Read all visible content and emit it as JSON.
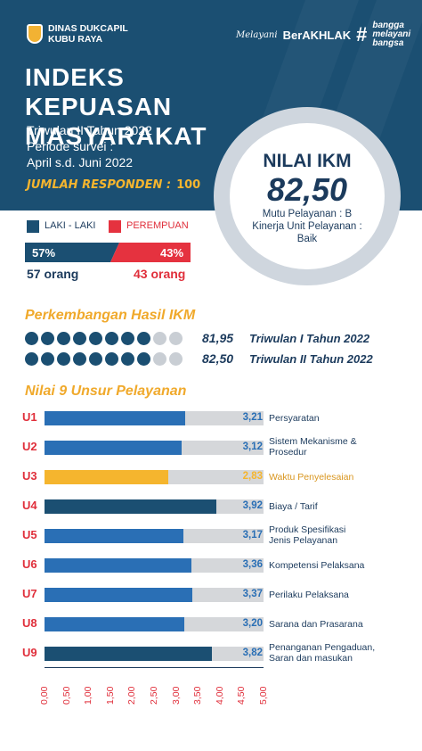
{
  "header": {
    "org_line1": "DINAS DUKCAPIL",
    "org_line2": "KUBU RAYA",
    "brand_script": "Melayani",
    "brand_main": "BerAKHLAK",
    "brand_hash": "#",
    "tag1": "bangga",
    "tag2": "melayani",
    "tag3": "bangsa"
  },
  "title_line1": "INDEKS KEPUASAN",
  "title_line2": "MASYARAKAT",
  "period": "Triwulan II Tahun 2022",
  "survey_line1": "Periode survei :",
  "survey_line2": "April s.d. Juni 2022",
  "respondents_label": "JUMLAH RESPONDEN :",
  "respondents_value": "100",
  "ikm": {
    "label": "NILAI IKM",
    "value": "82,50",
    "note1": "Mutu Pelayanan : B",
    "note2": "Kinerja Unit Pelayanan :",
    "note3": "Baik"
  },
  "gender": {
    "male_label": "LAKI - LAKI",
    "female_label": "PEREMPUAN",
    "male_pct": "57%",
    "female_pct": "43%",
    "male_count": "57 orang",
    "female_count": "43 orang",
    "male_fraction": 0.57,
    "male_color": "#1b4f72",
    "female_color": "#e5323f"
  },
  "trend": {
    "title": "Perkembangan Hasil IKM",
    "rows": [
      {
        "value": "81,95",
        "label": "Triwulan I Tahun 2022",
        "filled": 8
      },
      {
        "value": "82,50",
        "label": "Triwulan II Tahun 2022",
        "filled": 8
      }
    ],
    "dot_total": 10
  },
  "colors": {
    "navy": "#1b4f72",
    "blue": "#2a6fb5",
    "highlight": "#f5b52e",
    "track": "#d5d7da",
    "red": "#e02f3b"
  },
  "chart_data": {
    "type": "bar",
    "orientation": "horizontal",
    "title": "Nilai 9 Unsur Pelayanan",
    "categories": [
      "U1",
      "U2",
      "U3",
      "U4",
      "U5",
      "U6",
      "U7",
      "U8",
      "U9"
    ],
    "category_names": [
      [
        "Persyaratan"
      ],
      [
        "Sistem Mekanisme &",
        "Prosedur"
      ],
      [
        "Waktu Penyelesaian"
      ],
      [
        "Biaya / Tarif"
      ],
      [
        "Produk Spesifikasi",
        "Jenis Pelayanan"
      ],
      [
        "Kompetensi Pelaksana"
      ],
      [
        "Perilaku Pelaksana"
      ],
      [
        "Sarana dan Prasarana"
      ],
      [
        "Penanganan Pengaduan,",
        "Saran dan masukan"
      ]
    ],
    "values": [
      3.21,
      3.12,
      2.83,
      3.92,
      3.17,
      3.36,
      3.37,
      3.2,
      3.82
    ],
    "value_labels": [
      "3,21",
      "3,12",
      "2,83",
      "3,92",
      "3,17",
      "3,36",
      "3,37",
      "3,20",
      "3,82"
    ],
    "bar_colors": [
      "#2a6fb5",
      "#2a6fb5",
      "#f5b52e",
      "#1b4f72",
      "#2a6fb5",
      "#2a6fb5",
      "#2a6fb5",
      "#2a6fb5",
      "#1b4f72"
    ],
    "xlim": [
      0,
      5
    ],
    "ticks": [
      "0,00",
      "0,50",
      "1,00",
      "1,50",
      "2,00",
      "2,50",
      "3,00",
      "3,50",
      "4,00",
      "4,50",
      "5,00"
    ],
    "grid": false
  }
}
